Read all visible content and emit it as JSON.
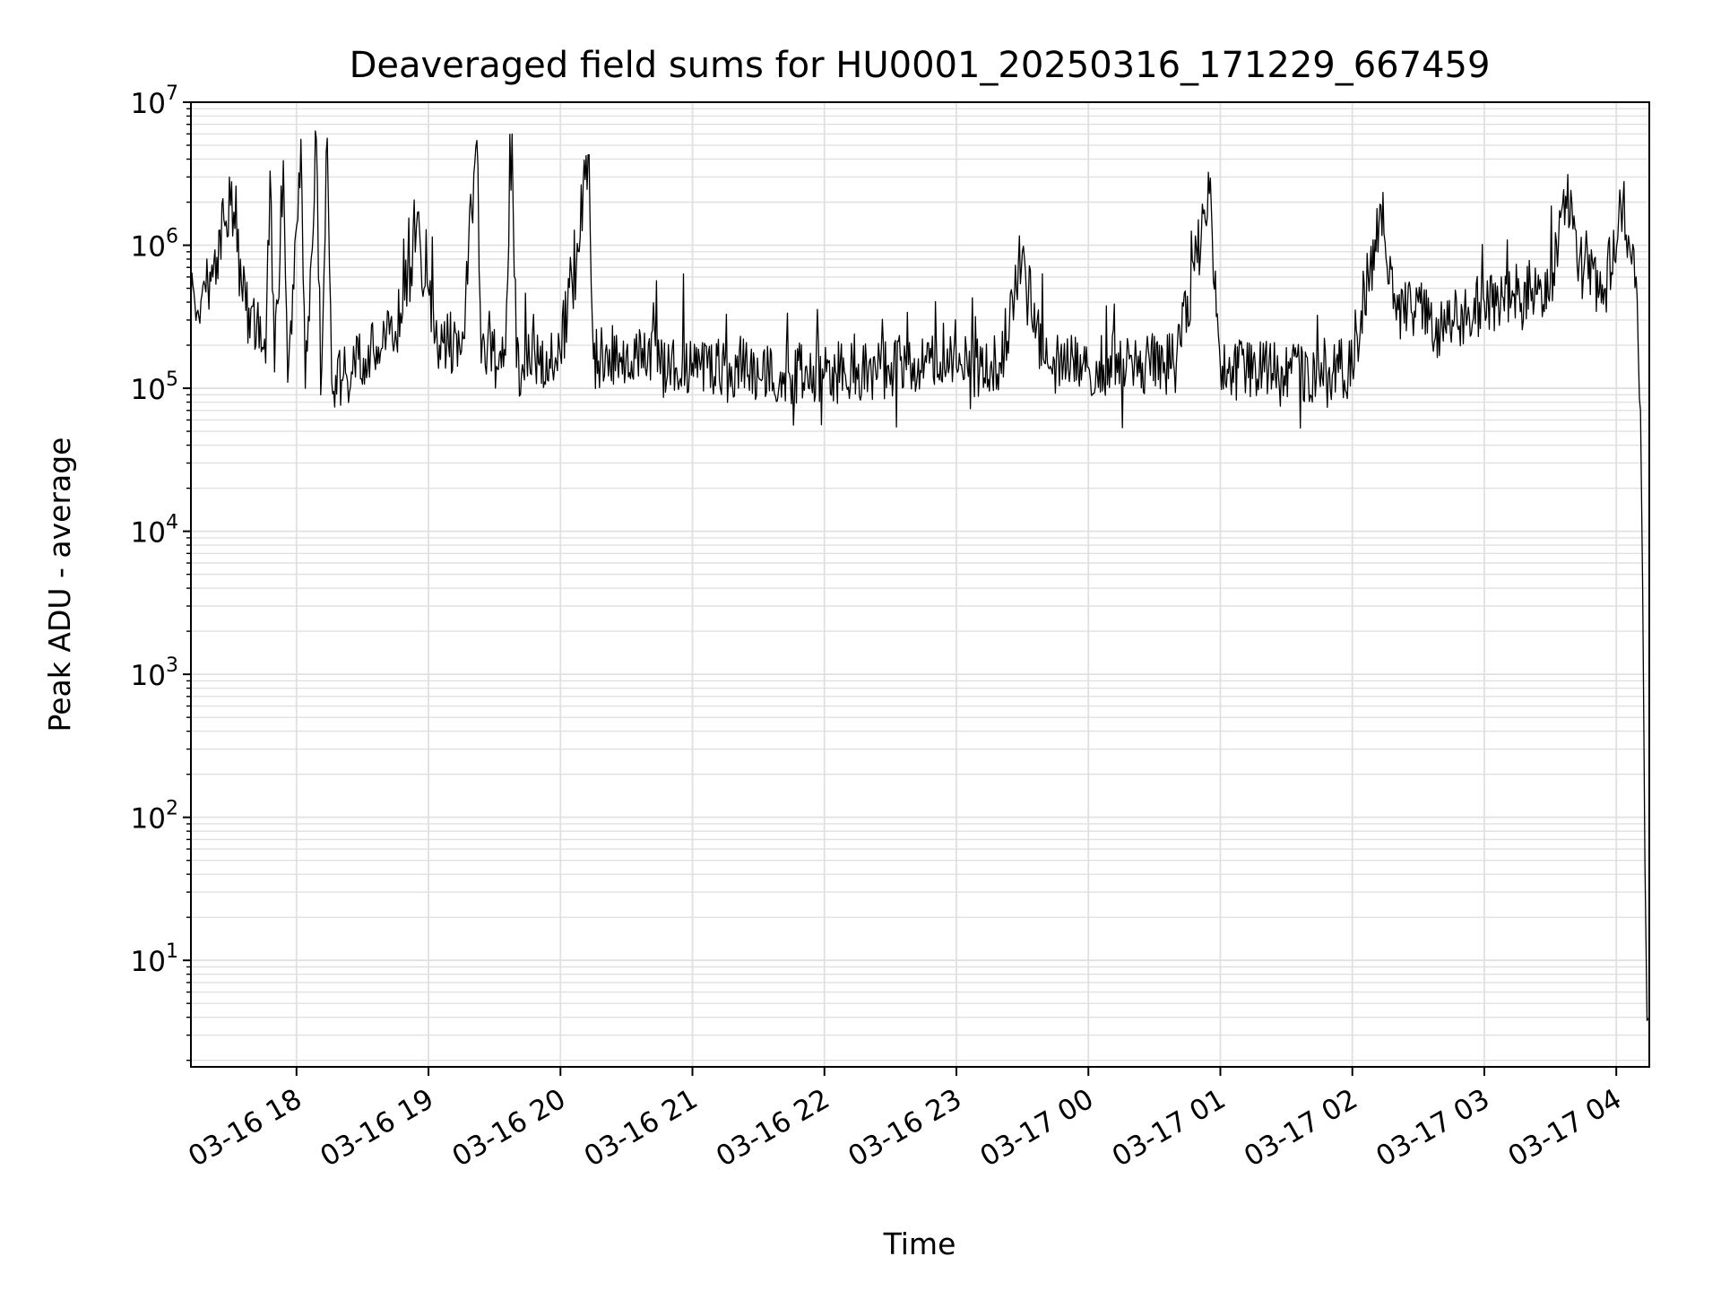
{
  "chart_data": {
    "type": "line",
    "title": "Deaveraged field sums for HU0001_20250316_171229_667459",
    "xlabel": "Time",
    "ylabel": "Peak ADU - average",
    "yscale": "log",
    "ylim": [
      1.8,
      10000000
    ],
    "xlim": [
      "2025-03-16 17:12",
      "2025-03-17 04:15"
    ],
    "grid": true,
    "line_color": "#000000",
    "grid_color": "#e0e0e0",
    "x_ticks": [
      {
        "value": "2025-03-16 18:00",
        "label": "03-16 18"
      },
      {
        "value": "2025-03-16 19:00",
        "label": "03-16 19"
      },
      {
        "value": "2025-03-16 20:00",
        "label": "03-16 20"
      },
      {
        "value": "2025-03-16 21:00",
        "label": "03-16 21"
      },
      {
        "value": "2025-03-16 22:00",
        "label": "03-16 22"
      },
      {
        "value": "2025-03-16 23:00",
        "label": "03-16 23"
      },
      {
        "value": "2025-03-17 00:00",
        "label": "03-17 00"
      },
      {
        "value": "2025-03-17 01:00",
        "label": "03-17 01"
      },
      {
        "value": "2025-03-17 02:00",
        "label": "03-17 02"
      },
      {
        "value": "2025-03-17 03:00",
        "label": "03-17 03"
      },
      {
        "value": "2025-03-17 04:00",
        "label": "03-17 04"
      }
    ],
    "y_ticks": [
      {
        "value": 10,
        "base": "10",
        "exp": "1"
      },
      {
        "value": 100,
        "base": "10",
        "exp": "2"
      },
      {
        "value": 1000,
        "base": "10",
        "exp": "3"
      },
      {
        "value": 10000,
        "base": "10",
        "exp": "4"
      },
      {
        "value": 100000,
        "base": "10",
        "exp": "5"
      },
      {
        "value": 1000000,
        "base": "10",
        "exp": "6"
      },
      {
        "value": 10000000,
        "base": "10",
        "exp": "7"
      }
    ],
    "series": [
      {
        "points": [
          [
            "2025-03-16 17:12",
            380000
          ],
          [
            "2025-03-16 17:17",
            450000
          ],
          [
            "2025-03-16 17:22",
            600000
          ],
          [
            "2025-03-16 17:27",
            1500000
          ],
          [
            "2025-03-16 17:30",
            1900000
          ],
          [
            "2025-03-16 17:33",
            900000
          ],
          [
            "2025-03-16 17:37",
            350000
          ],
          [
            "2025-03-16 17:42",
            300000
          ],
          [
            "2025-03-16 17:46",
            150000
          ],
          [
            "2025-03-16 17:48",
            3300000
          ],
          [
            "2025-03-16 17:50",
            130000
          ],
          [
            "2025-03-16 17:54",
            3900000
          ],
          [
            "2025-03-16 17:56",
            110000
          ],
          [
            "2025-03-16 18:02",
            5500000
          ],
          [
            "2025-03-16 18:04",
            100000
          ],
          [
            "2025-03-16 18:09",
            5600000
          ],
          [
            "2025-03-16 18:11",
            90000
          ],
          [
            "2025-03-16 18:14",
            5600000
          ],
          [
            "2025-03-16 18:16",
            110000
          ],
          [
            "2025-03-16 18:25",
            130000
          ],
          [
            "2025-03-16 18:35",
            180000
          ],
          [
            "2025-03-16 18:45",
            250000
          ],
          [
            "2025-03-16 18:52",
            700000
          ],
          [
            "2025-03-16 18:55",
            1700000
          ],
          [
            "2025-03-16 18:58",
            500000
          ],
          [
            "2025-03-16 19:05",
            200000
          ],
          [
            "2025-03-16 19:15",
            180000
          ],
          [
            "2025-03-16 19:22",
            5400000
          ],
          [
            "2025-03-16 19:24",
            150000
          ],
          [
            "2025-03-16 19:35",
            170000
          ],
          [
            "2025-03-16 19:38",
            6000000
          ],
          [
            "2025-03-16 19:40",
            140000
          ],
          [
            "2025-03-16 19:50",
            150000
          ],
          [
            "2025-03-16 20:00",
            170000
          ],
          [
            "2025-03-16 20:13",
            4300000
          ],
          [
            "2025-03-16 20:15",
            160000
          ],
          [
            "2025-03-16 20:30",
            180000
          ],
          [
            "2025-03-16 20:45",
            160000
          ],
          [
            "2025-03-16 21:00",
            150000
          ],
          [
            "2025-03-16 21:20",
            140000
          ],
          [
            "2025-03-16 21:40",
            130000
          ],
          [
            "2025-03-16 22:00",
            125000
          ],
          [
            "2025-03-16 22:20",
            130000
          ],
          [
            "2025-03-16 22:40",
            150000
          ],
          [
            "2025-03-16 23:00",
            140000
          ],
          [
            "2025-03-16 23:20",
            150000
          ],
          [
            "2025-03-16 23:30",
            900000
          ],
          [
            "2025-03-16 23:40",
            150000
          ],
          [
            "2025-03-17 00:00",
            140000
          ],
          [
            "2025-03-17 00:20",
            145000
          ],
          [
            "2025-03-17 00:40",
            150000
          ],
          [
            "2025-03-17 00:55",
            2300000
          ],
          [
            "2025-03-17 01:00",
            140000
          ],
          [
            "2025-03-17 01:20",
            130000
          ],
          [
            "2025-03-17 01:40",
            120000
          ],
          [
            "2025-03-17 02:00",
            140000
          ],
          [
            "2025-03-17 02:13",
            1900000
          ],
          [
            "2025-03-17 02:20",
            300000
          ],
          [
            "2025-03-17 02:30",
            400000
          ],
          [
            "2025-03-17 02:40",
            250000
          ],
          [
            "2025-03-17 03:00",
            400000
          ],
          [
            "2025-03-17 03:15",
            450000
          ],
          [
            "2025-03-17 03:30",
            550000
          ],
          [
            "2025-03-17 03:37",
            2200000
          ],
          [
            "2025-03-17 03:45",
            600000
          ],
          [
            "2025-03-17 03:55",
            500000
          ],
          [
            "2025-03-17 04:03",
            2000000
          ],
          [
            "2025-03-17 04:06",
            1000000
          ],
          [
            "2025-03-17 04:09",
            600000
          ],
          [
            "2025-03-17 04:11",
            70000
          ],
          [
            "2025-03-17 04:12",
            4000
          ],
          [
            "2025-03-17 04:13",
            50
          ],
          [
            "2025-03-17 04:14",
            3.8
          ],
          [
            "2025-03-17 04:15",
            4
          ]
        ]
      }
    ]
  }
}
